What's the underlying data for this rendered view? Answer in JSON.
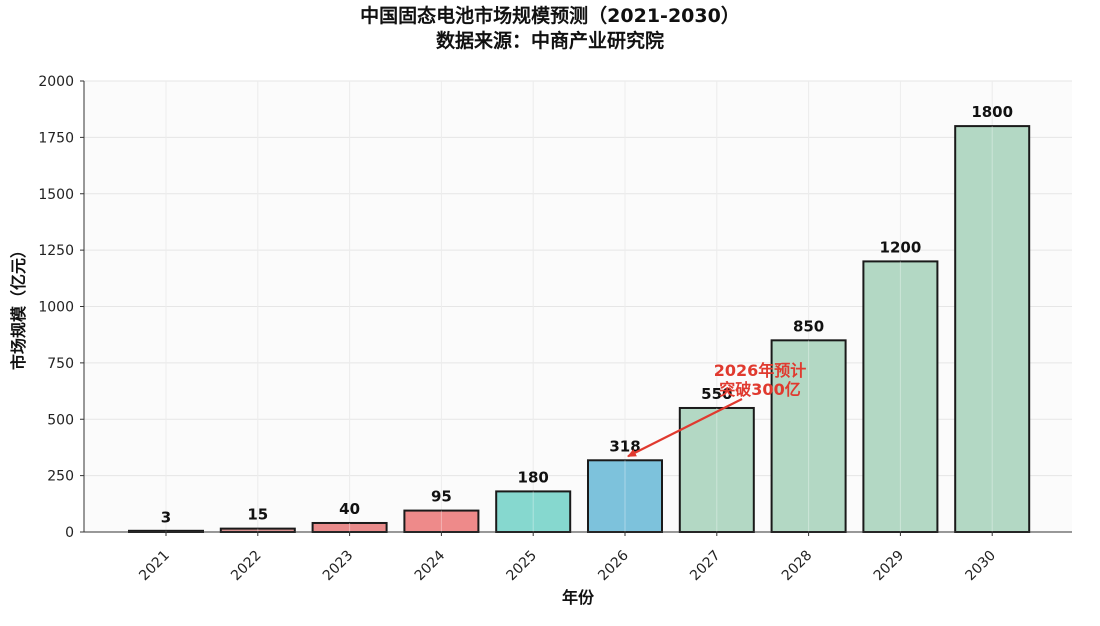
{
  "chart_data": {
    "type": "bar",
    "title": "中国固态电池市场规模预测（2021-2030）",
    "subtitle": "数据来源：中商产业研究院",
    "xlabel": "年份",
    "ylabel": "市场规模（亿元）",
    "categories": [
      "2021",
      "2022",
      "2023",
      "2024",
      "2025",
      "2026",
      "2027",
      "2028",
      "2029",
      "2030"
    ],
    "values": [
      3,
      15,
      40,
      95,
      180,
      318,
      550,
      850,
      1200,
      1800
    ],
    "value_labels": [
      "3",
      "15",
      "40",
      "95",
      "180",
      "318",
      "550",
      "850",
      "1200",
      "1800"
    ],
    "bar_colors": [
      "#9c9c9c",
      "#d9908f",
      "#e98b8b",
      "#ee8a8a",
      "#86d8cf",
      "#7dc2dc",
      "#b3d8c4",
      "#b3d8c4",
      "#b3d8c4",
      "#b3d8c4"
    ],
    "ylim": [
      0,
      2000
    ],
    "yticks": [
      0,
      250,
      500,
      750,
      1000,
      1250,
      1500,
      1750,
      2000
    ],
    "grid": true,
    "annotation": {
      "lines": [
        "2026年预计",
        "突破300亿"
      ],
      "target_category": "2026",
      "target_value": 318,
      "color": "#e03a2f"
    }
  }
}
